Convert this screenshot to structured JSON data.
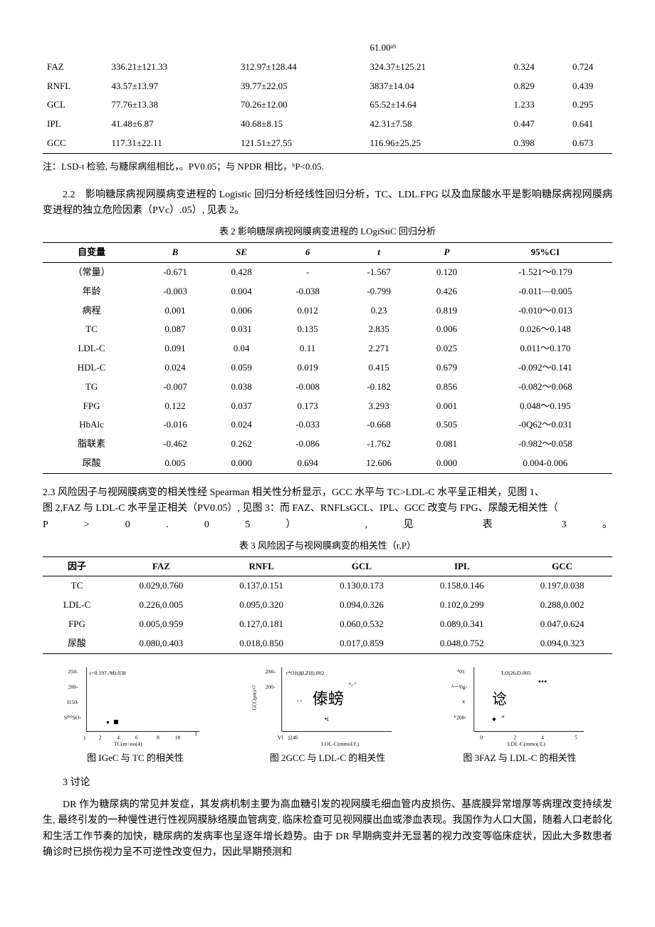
{
  "table1_tail": {
    "col_align": [
      "left",
      "left",
      "left",
      "left",
      "center",
      "center"
    ],
    "rows": [
      [
        "",
        "",
        "",
        "61.00ᵃᵇ",
        "",
        ""
      ],
      [
        "FAZ",
        "336.21±121.33",
        "312.97±128.44",
        "324.37±125.21",
        "0.324",
        "0.724"
      ],
      [
        "RNFL",
        "43.57±13.97",
        "39.77±22.05",
        "3837±14.04",
        "0.829",
        "0.439"
      ],
      [
        "GCL",
        "77.76±13.38",
        "70.26±12.00",
        "65.52±14.64",
        "1.233",
        "0.295"
      ],
      [
        "IPL",
        "41.48±6.87",
        "40.68±8.15",
        "42.31±7.58",
        "0.447",
        "0.641"
      ],
      [
        "GCC",
        "117.31±22.11",
        "121.51±27.55",
        "116.96±25.25",
        "0.398",
        "0.673"
      ]
    ],
    "note": "注：LSD-t 检验, 与糖尿病组相比，。PV0.05；与 NPDR 相比，ᵇP<0.05."
  },
  "section22": {
    "para": "2.2　影响糖尿病视网膜病变进程的 Logistic 回归分析经线性回归分析，TC、LDL.FPG 以及血尿酸水平是影响糖尿病视网膜病变进程的独立危险因素（PVc）.05）, 见表 2。"
  },
  "table2": {
    "caption": "表 2 影响糖尿病视网膜病变进程的 LOgiStiC 回归分析",
    "headers": [
      "自变量",
      "B",
      "SE",
      "6",
      "t",
      "P",
      "95%CI"
    ],
    "rows": [
      [
        "（常量）",
        "-0.671",
        "0.428",
        "-",
        "-1.567",
        "0.120",
        "-1.521〜0.179"
      ],
      [
        "年龄",
        "-0.003",
        "0.004",
        "-0.038",
        "-0.799",
        "0.426",
        "-0.011—0.005"
      ],
      [
        "病程",
        "0.001",
        "0.006",
        "0.012",
        "0.23",
        "0.819",
        "-0.010〜0.013"
      ],
      [
        "TC",
        "0.087",
        "0.031",
        "0.135",
        "2.835",
        "0.006",
        "0.026〜0.148"
      ],
      [
        "LDL-C",
        "0.091",
        "0.04",
        "0.11",
        "2.271",
        "0.025",
        "0.011〜0.170"
      ],
      [
        "HDL-C",
        "0.024",
        "0.059",
        "0.019",
        "0.415",
        "0.679",
        "-0.092〜0.141"
      ],
      [
        "TG",
        "-0.007",
        "0.038",
        "-0.008",
        "-0.182",
        "0.856",
        "-0.082〜0.068"
      ],
      [
        "FPG",
        "0.122",
        "0.037",
        "0.173",
        "3.293",
        "0.001",
        "0.048〜0.195"
      ],
      [
        "HbAlc",
        "-0.016",
        "0.024",
        "-0.033",
        "-0.668",
        "0.505",
        "-0Q62〜0.031"
      ],
      [
        "脂联素",
        "-0.462",
        "0.262",
        "-0.086",
        "-1.762",
        "0.081",
        "-0.982〜0.058"
      ],
      [
        "尿酸",
        "0.005",
        "0.000",
        "0.694",
        "12.606",
        "0.000",
        "0.004-0.006"
      ]
    ]
  },
  "section23": {
    "lines": [
      "2.3 风险因子与视网膜病变的相关性经 Spearman 相关性分析显示，GCC 水平与 TC>LDL-C 水平呈正相关，见图 1、",
      "图 2,FAZ 与 LDL-C 水平呈正相关（PV0.05）, 见图 3：而 FAZ、RNFLsGCL、IPL、GCC 改变与 FPG、尿酸无相关性（",
      "P > 0 . 0 5 ） , 见 表 3 。"
    ]
  },
  "table3": {
    "caption": "表 3 风险因子与视网膜病变的相关性（r,P）",
    "headers": [
      "因子",
      "FAZ",
      "RNFL",
      "GCL",
      "IPL",
      "GCC"
    ],
    "rows": [
      [
        "TC",
        "0.029,0.760",
        "0.137,0.151",
        "0.130,0.173",
        "0.158,0.146",
        "0.197,0.038"
      ],
      [
        "LDL-C",
        "0.226,0.005",
        "0.095,0.320",
        "0.094,0.326",
        "0.102,0.299",
        "0.288,0.002"
      ],
      [
        "FPG",
        "0.005,0.959",
        "0.127,0.181",
        "0.060,0.532",
        "0.089,0.341",
        "0.047,0.624"
      ],
      [
        "尿酸",
        "0.080,0.403",
        "0.018,0.850",
        "0.017,0.859",
        "0.048,0.752",
        "0.094,0.323"
      ]
    ]
  },
  "figures": {
    "fig1": {
      "type": "scatter",
      "r_label": "r=0.197./M).038",
      "y_ticks": [
        "250-",
        "200-",
        "I150-",
        "S¹⁰⁰SO-"
      ],
      "x_ticks": [
        ")",
        "2",
        "4",
        "6",
        "8",
        "1θ",
        "I"
      ],
      "x_label": "TC(m<no(4)",
      "title": "图 IGeC 与 TC 的相关性",
      "points_glyphs": [
        "∙",
        "■"
      ],
      "axis_color": "#000000",
      "point_color": "#000000",
      "bg": "#ffffff"
    },
    "fig2": {
      "type": "scatter",
      "r_label": "r*OJ(ββ,ZH).002",
      "y_ticks": [
        "2S0-",
        "200-"
      ],
      "y_label": "GCC(μm)/•7",
      "x_ticks": [
        "VI",
        ")246"
      ],
      "x_label": "LOL-C(mmoI/L)",
      "title": "图 2GCC 与 LDL-C 的相关性",
      "center_glyphs": "傣螃 •t",
      "axis_color": "#000000",
      "point_color": "#000000",
      "bg": "#ffffff"
    },
    "fig3": {
      "type": "scatter",
      "r_label": "LOj26.D.005",
      "y_ticks": [
        "ᴾ01",
        "ᴬᅳᴵ0g-",
        "ᴷ",
        "ᴷ200-"
      ],
      "x_ticks": [
        "0",
        "2",
        "4",
        "5"
      ],
      "x_label": "LDL-C(mmo(/L)",
      "title": "图 3FAZ 与 LDL-C 的相关性",
      "center_glyphs": "谂 ''  •••",
      "axis_color": "#000000",
      "point_color": "#000000",
      "bg": "#ffffff"
    }
  },
  "section3": {
    "heading": "3 讨论",
    "para": "DR 作为糖尿病的常见并发症，其发病机制主要为高血糖引发的视网膜毛细血管内皮损伤、基底膜异常增厚等病理改变持续发生, 最终引发的一种慢性进行性视网膜脉络膜血管病变, 临床检查可见视网膜出血或渗血表现。我国作为人口大国，随着人口老龄化和生活工作节奏的加快，糖尿病的发病率也呈逐年增长趋势。由于 DR 早期病变并无显著的视力改变等临床症状，因此大多数患者确诊时已损伤视力呈不可逆性改变但力，因此早期预测和"
  }
}
